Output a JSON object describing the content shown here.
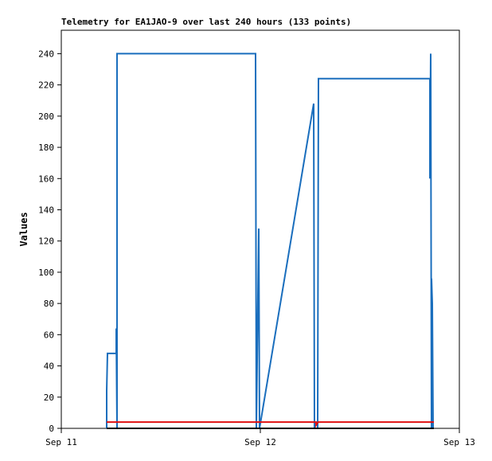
{
  "chart_data": {
    "type": "line",
    "title": "Telemetry for EA1JAO-9 over last 240 hours (133 points)",
    "y_label": "Values",
    "xlim": [
      0,
      2
    ],
    "xticks": [
      {
        "value": 0,
        "label": "Sep 11"
      },
      {
        "value": 1,
        "label": "Sep 12"
      },
      {
        "value": 2,
        "label": "Sep 13"
      }
    ],
    "ylim": [
      0,
      255
    ],
    "yticks": [
      0,
      20,
      40,
      60,
      80,
      100,
      120,
      140,
      160,
      180,
      200,
      220,
      240
    ],
    "series": [
      {
        "color": "#1a6ebd",
        "x": [
          0.228,
          0.228,
          0.232,
          0.276,
          0.276,
          0.28,
          0.28,
          0.976,
          0.98,
          0.992,
          0.996,
          1.268,
          1.272,
          1.288,
          1.292,
          1.852,
          1.852,
          1.856,
          1.86,
          1.86,
          1.864,
          1.868
        ],
        "values": [
          0,
          24,
          48,
          48,
          64,
          0,
          240,
          240,
          0,
          128,
          0,
          208,
          0,
          0,
          224,
          224,
          160,
          240,
          0,
          96,
          80,
          0
        ]
      },
      {
        "color": "#e01010",
        "x": [
          0.228,
          1.28,
          1.28,
          1.29,
          1.872
        ],
        "values": [
          4,
          4,
          2,
          4,
          4
        ]
      },
      {
        "color": "#000000",
        "x": [
          0.228,
          1.872
        ],
        "values": [
          0,
          0
        ]
      }
    ]
  }
}
